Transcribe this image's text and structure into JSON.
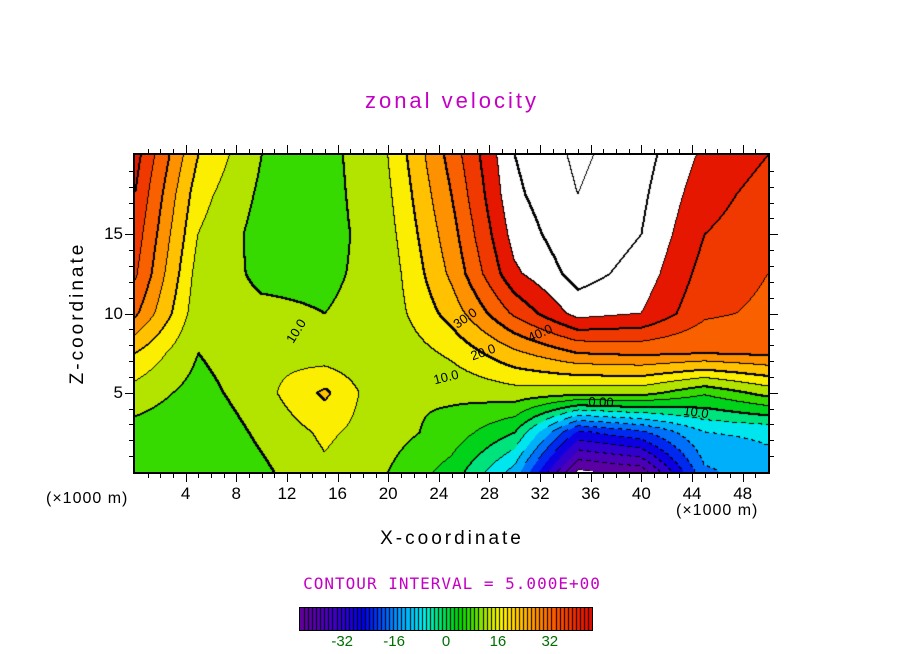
{
  "colors": {
    "title": "#c400c4",
    "annotation": "#c400c4",
    "colorbar_label": "#006e00",
    "contour_line": "#000000",
    "background": "#ffffff"
  },
  "chart_data": {
    "type": "heatmap",
    "title": "zonal velocity",
    "xlabel": "X-coordinate",
    "ylabel": "Z-coordinate",
    "x_unit": "(×1000 m)",
    "y_unit": "(×1000 m)",
    "x_range": [
      0,
      50
    ],
    "z_range": [
      0,
      20
    ],
    "x_major_ticks": [
      4,
      8,
      12,
      16,
      20,
      24,
      28,
      32,
      36,
      40,
      44,
      48
    ],
    "z_major_ticks": [
      5,
      10,
      15
    ],
    "contour_interval": 5,
    "contour_interval_text": "CONTOUR INTERVAL = 5.000E+00",
    "contour_labels": [
      {
        "text": "10.0",
        "x": 12.7,
        "z": 8.9,
        "rot": -58
      },
      {
        "text": "30.0",
        "x": 26.1,
        "z": 9.7,
        "rot": -35
      },
      {
        "text": "40.0",
        "x": 32.0,
        "z": 8.8,
        "rot": -24
      },
      {
        "text": "20.0",
        "x": 27.5,
        "z": 7.6,
        "rot": -20
      },
      {
        "text": "10.0",
        "x": 24.6,
        "z": 6.0,
        "rot": -14
      },
      {
        "text": "0.00",
        "x": 36.8,
        "z": 4.4,
        "rot": 2
      },
      {
        "text": "10.0",
        "x": 44.3,
        "z": 3.8,
        "rot": 8
      }
    ],
    "colorbar": {
      "min": -45,
      "max": 45,
      "ticks": [
        -32,
        -16,
        0,
        16,
        32
      ],
      "segments": 72
    },
    "colormap": [
      [
        -45,
        278,
        100,
        30
      ],
      [
        -35,
        260,
        100,
        38
      ],
      [
        -25,
        238,
        100,
        46
      ],
      [
        -15,
        205,
        100,
        50
      ],
      [
        -8,
        185,
        100,
        47
      ],
      [
        -2,
        150,
        100,
        44
      ],
      [
        3,
        125,
        100,
        41
      ],
      [
        8,
        103,
        100,
        43
      ],
      [
        13,
        70,
        100,
        45
      ],
      [
        18,
        55,
        100,
        50
      ],
      [
        25,
        40,
        100,
        50
      ],
      [
        32,
        24,
        100,
        49
      ],
      [
        40,
        10,
        100,
        46
      ],
      [
        45,
        2,
        100,
        44
      ]
    ],
    "grid": {
      "x": [
        0,
        5,
        10,
        15,
        20,
        25,
        30,
        35,
        40,
        45,
        50
      ],
      "z": [
        20,
        17.5,
        15,
        12.5,
        10,
        7.5,
        5,
        2.5,
        0
      ],
      "values": [
        [
          42,
          20,
          10,
          8,
          15,
          32,
          50,
          56,
          52,
          44,
          40
        ],
        [
          40,
          17,
          9,
          8,
          14,
          30,
          49,
          55,
          51,
          42,
          38
        ],
        [
          38,
          15,
          8,
          8,
          13,
          28,
          47,
          54,
          50,
          40,
          37
        ],
        [
          36,
          13,
          9,
          9,
          12,
          26,
          44,
          52,
          48,
          38,
          35
        ],
        [
          31,
          12,
          11,
          10,
          12,
          22,
          36,
          47,
          45,
          36,
          34
        ],
        [
          20,
          10,
          14,
          12,
          11,
          16,
          24,
          30,
          31,
          30,
          31
        ],
        [
          13,
          8,
          13,
          21,
          10,
          11,
          13,
          12,
          12,
          6,
          12
        ],
        [
          8,
          6,
          11,
          16,
          12,
          8,
          0,
          -26,
          -21,
          -10,
          -9
        ],
        [
          6,
          5,
          9,
          14,
          10,
          3,
          -12,
          -46,
          -43,
          -16,
          -12
        ]
      ]
    }
  }
}
